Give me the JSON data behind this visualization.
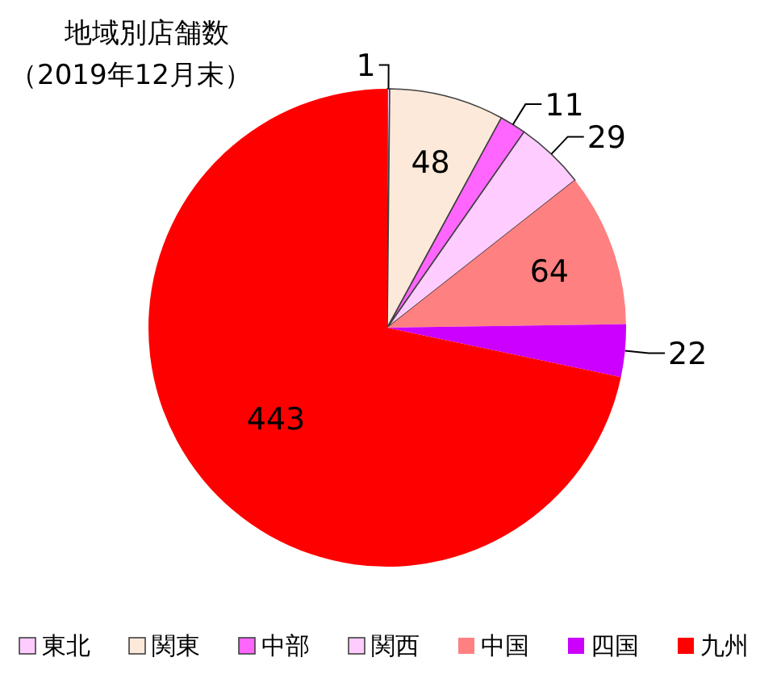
{
  "chart_data": {
    "type": "pie",
    "title": "地域別店舗数",
    "subtitle": "（2019年12月末）",
    "categories": [
      "東北",
      "関東",
      "中部",
      "関西",
      "中国",
      "四国",
      "九州"
    ],
    "values": [
      1,
      48,
      11,
      29,
      64,
      22,
      443
    ],
    "colors": [
      "#ffccff",
      "#fde9d9",
      "#ff66ff",
      "#ffccff",
      "#ff8080",
      "#cc00ff",
      "#ff0000"
    ],
    "data_labels": true,
    "legend": "bottom"
  }
}
